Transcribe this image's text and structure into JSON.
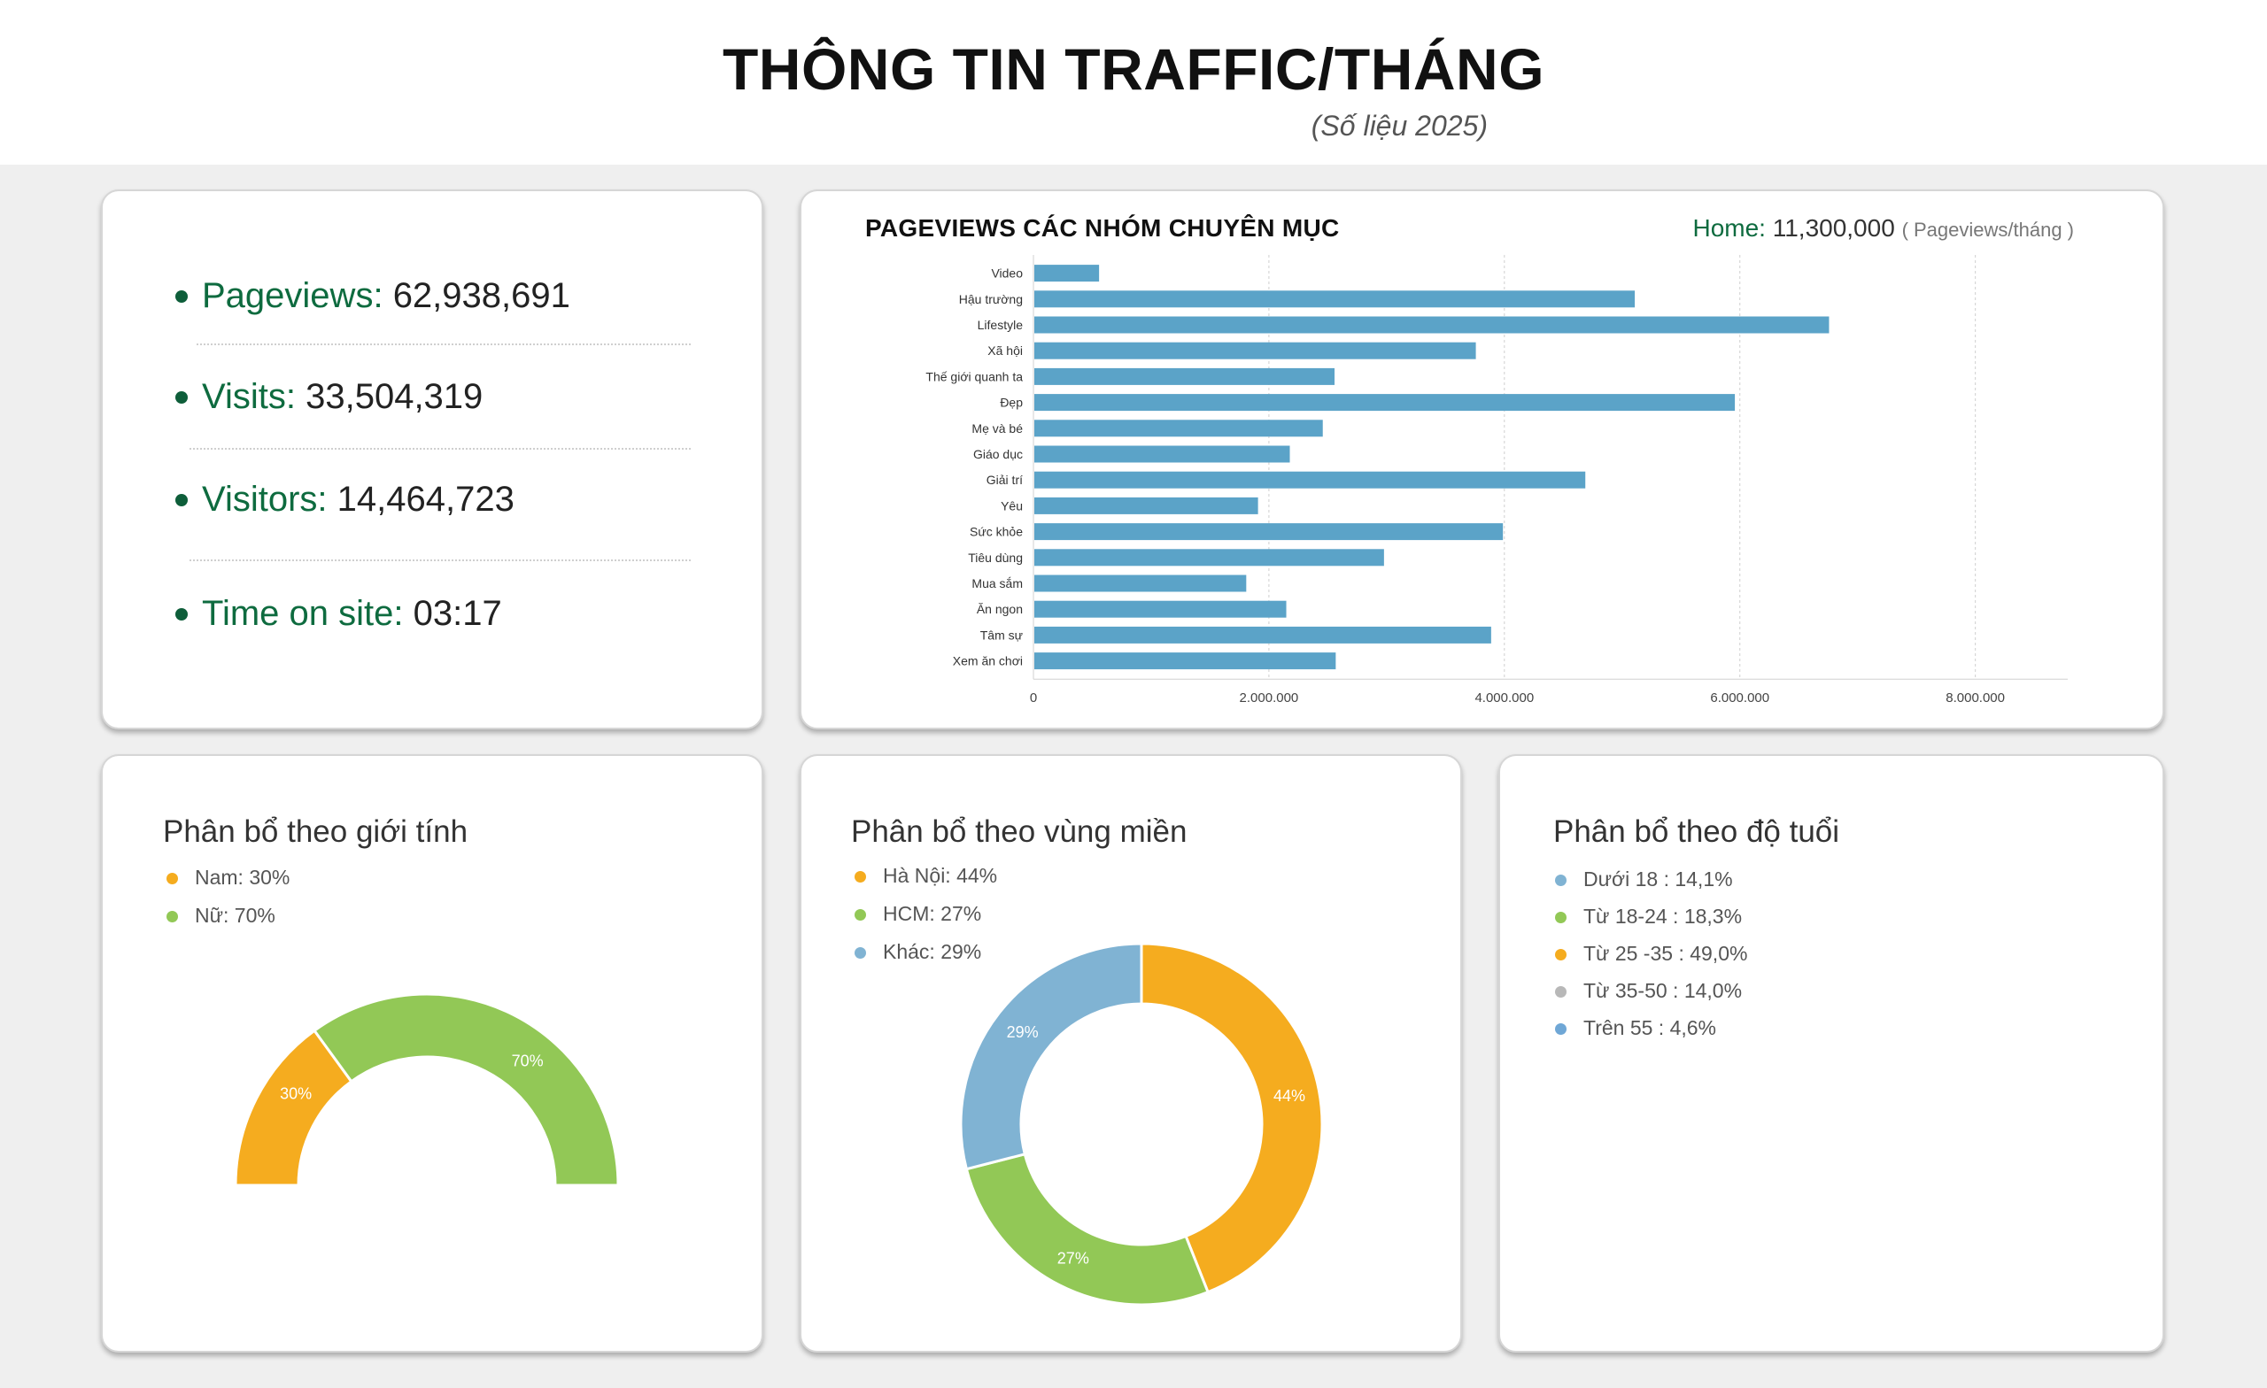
{
  "header": {
    "title": "THÔNG TIN TRAFFIC/THÁNG",
    "subtitle": "(Số liệu 2025)"
  },
  "stats": [
    {
      "label": "Pageviews:",
      "value": "62,938,691"
    },
    {
      "label": "Visits:",
      "value": "33,504,319"
    },
    {
      "label": "Visitors:",
      "value": "14,464,723"
    },
    {
      "label": "Time on site:",
      "value": "03:17"
    }
  ],
  "categories_card": {
    "title": "PAGEVIEWS CÁC NHÓM CHUYÊN MỤC",
    "home_label": "Home:",
    "home_value": "11,300,000",
    "home_unit": "( Pageviews/tháng )"
  },
  "gender": {
    "title": "Phân bổ theo giới tính",
    "legend": [
      "Nam: 30%",
      "Nữ: 70%"
    ]
  },
  "region": {
    "title": "Phân bổ theo vùng miền",
    "legend": [
      "Hà Nội: 44%",
      "HCM: 27%",
      "Khác: 29%"
    ]
  },
  "age": {
    "title": "Phân bổ theo độ tuổi",
    "legend": [
      "Dưới 18 : 14,1%",
      "Từ 18-24 : 18,3%",
      "Từ 25 -35 : 49,0%",
      "Từ 35-50 : 14,0%",
      "Trên 55 : 4,6%"
    ]
  },
  "colors": {
    "green_text": "#0e6b3f",
    "bar": "#5ba3c8",
    "orange": "#f5ac1f",
    "lightgreen": "#92c856",
    "lightblue": "#80b3d3",
    "gray": "#b8b8b8",
    "steelblue": "#6fa7d6"
  },
  "chart_data": [
    {
      "type": "bar",
      "orientation": "horizontal",
      "title": "PAGEVIEWS CÁC NHÓM CHUYÊN MỤC",
      "categories": [
        "Video",
        "Hậu trường",
        "Lifestyle",
        "Xã hội",
        "Thế giới quanh ta",
        "Đẹp",
        "Mẹ và bé",
        "Giáo dục",
        "Giải trí",
        "Yêu",
        "Sức khỏe",
        "Tiêu dùng",
        "Mua sắm",
        "Ăn ngon",
        "Tâm sự",
        "Xem ăn chơi"
      ],
      "values": [
        550000,
        5100000,
        6750000,
        3750000,
        2550000,
        5950000,
        2450000,
        2170000,
        4680000,
        1900000,
        3980000,
        2970000,
        1800000,
        2140000,
        3880000,
        2560000
      ],
      "xticks": [
        0,
        2000000,
        4000000,
        6000000,
        8000000
      ],
      "xtick_labels": [
        "0",
        "2.000.000",
        "4.000.000",
        "6.000.000",
        "8.000.000"
      ],
      "xlim": [
        0,
        8800000
      ],
      "grid": true
    },
    {
      "type": "pie",
      "variant": "semi-donut",
      "title": "Phân bổ theo giới tính",
      "labels": [
        "Nam",
        "Nữ"
      ],
      "values": [
        30,
        70
      ],
      "value_labels": [
        "30%",
        "70%"
      ],
      "colors": [
        "#f5ac1f",
        "#92c856"
      ]
    },
    {
      "type": "pie",
      "variant": "donut",
      "title": "Phân bổ theo vùng miền",
      "labels": [
        "Hà Nội",
        "HCM",
        "Khác"
      ],
      "values": [
        44,
        27,
        29
      ],
      "value_labels": [
        "44%",
        "27%",
        "29%"
      ],
      "colors": [
        "#f5ac1f",
        "#92c856",
        "#80b3d3"
      ]
    },
    {
      "type": "pie",
      "title": "Phân bổ theo độ tuổi",
      "labels": [
        "Dưới 18",
        "Từ 18-24",
        "Từ 25 -35",
        "Từ 35-50",
        "Trên 55"
      ],
      "values": [
        14.1,
        18.3,
        49.0,
        14.0,
        4.6
      ],
      "colors": [
        "#80b3d3",
        "#92c856",
        "#f5ac1f",
        "#b8b8b8",
        "#6fa7d6"
      ]
    }
  ]
}
